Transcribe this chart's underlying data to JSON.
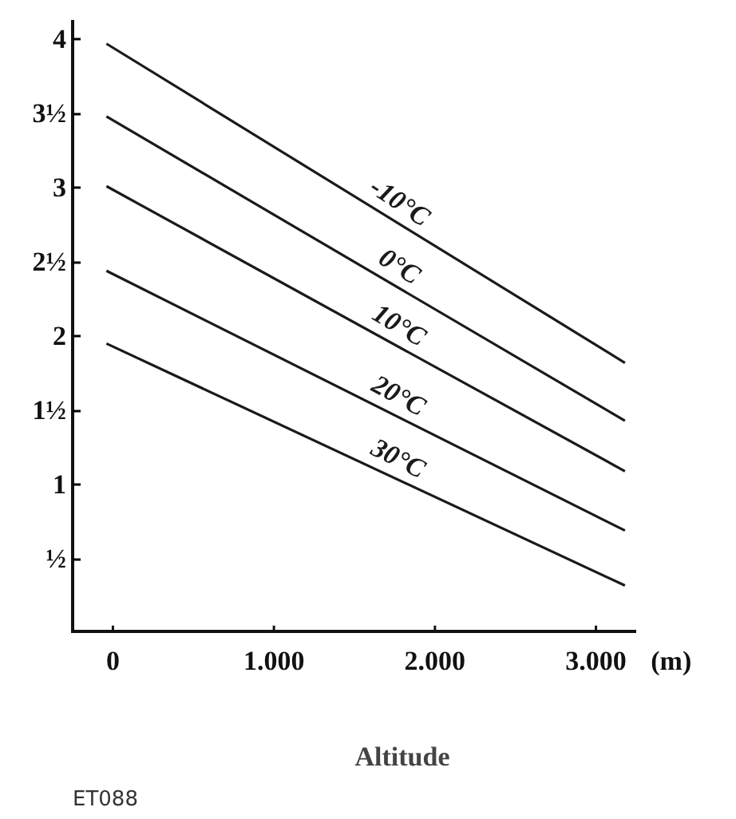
{
  "chart_data": {
    "type": "line",
    "xlabel": "Altitude",
    "x": [
      -40,
      3180
    ],
    "series": [
      {
        "name": "-10°C",
        "color": "#1a1a1a",
        "values": [
          3.97,
          1.82
        ]
      },
      {
        "name": "0°C",
        "color": "#1a1a1a",
        "values": [
          3.48,
          1.43
        ]
      },
      {
        "name": "10°C",
        "color": "#1a1a1a",
        "values": [
          3.01,
          1.09
        ]
      },
      {
        "name": "20°C",
        "color": "#1a1a1a",
        "values": [
          2.44,
          0.69
        ]
      },
      {
        "name": "30°C",
        "color": "#1a1a1a",
        "values": [
          1.95,
          0.32
        ]
      }
    ],
    "xlim": [
      -250,
      3250
    ],
    "ylim": [
      0,
      4.13
    ],
    "xticks": [
      0,
      {
        "value": 1000,
        "label": "1.000"
      },
      {
        "value": 2000,
        "label": "2.000"
      },
      {
        "value": 3000,
        "label": "3.000"
      }
    ],
    "yticks": [
      {
        "value": 0.5,
        "label": "½"
      },
      1,
      {
        "value": 1.5,
        "label": "1½"
      },
      2,
      {
        "value": 2.5,
        "label": "2½"
      },
      3,
      {
        "value": 3.5,
        "label": "3½"
      },
      4
    ],
    "grid": false,
    "marker": "none",
    "line_style": "solid",
    "annotations": [
      "(m)",
      "ET088"
    ]
  }
}
